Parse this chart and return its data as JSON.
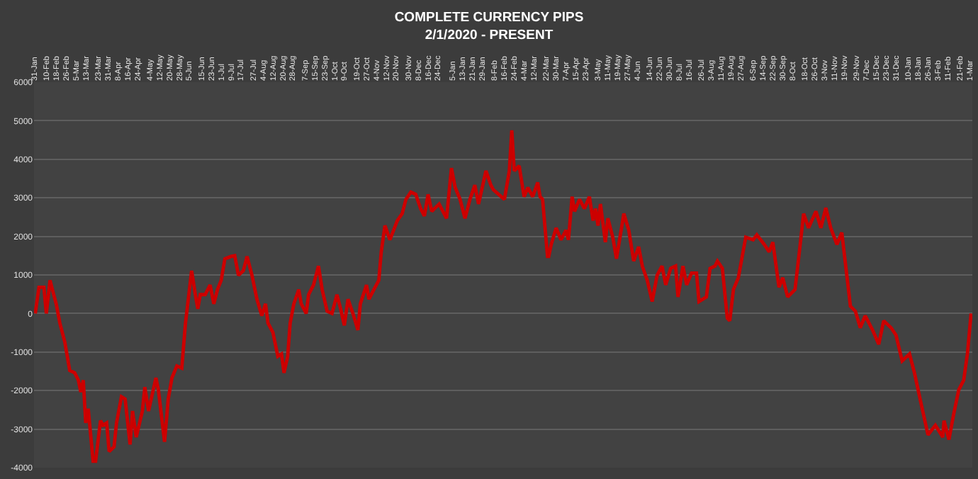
{
  "chart_data": {
    "type": "line",
    "title": "COMPLETE CURRENCY PIPS",
    "subtitle": "2/1/2020 - PRESENT",
    "series": [
      {
        "color": "#cc0000",
        "x": [
          "2020-02-01",
          "2020-02-04",
          "2020-02-08",
          "2020-02-10",
          "2020-02-13",
          "2020-02-16",
          "2020-02-18",
          "2020-02-21",
          "2020-02-25",
          "2020-02-29",
          "2020-03-04",
          "2020-03-07",
          "2020-03-09",
          "2020-03-11",
          "2020-03-13",
          "2020-03-15",
          "2020-03-19",
          "2020-03-21",
          "2020-03-25",
          "2020-03-27",
          "2020-03-30",
          "2020-04-01",
          "2020-04-05",
          "2020-04-07",
          "2020-04-11",
          "2020-04-14",
          "2020-04-18",
          "2020-04-20",
          "2020-04-23",
          "2020-04-28",
          "2020-04-30",
          "2020-05-03",
          "2020-05-09",
          "2020-05-11",
          "2020-05-16",
          "2020-05-19",
          "2020-05-22",
          "2020-05-26",
          "2020-05-30",
          "2020-06-02",
          "2020-06-07",
          "2020-06-10",
          "2020-06-12",
          "2020-06-14",
          "2020-06-18",
          "2020-06-22",
          "2020-06-25",
          "2020-06-28",
          "2020-07-01",
          "2020-07-04",
          "2020-07-09",
          "2020-07-12",
          "2020-07-15",
          "2020-07-19",
          "2020-07-22",
          "2020-07-26",
          "2020-07-30",
          "2020-08-03",
          "2020-08-06",
          "2020-08-08",
          "2020-08-12",
          "2020-08-16",
          "2020-08-19",
          "2020-08-21",
          "2020-08-24",
          "2020-08-26",
          "2020-08-29",
          "2020-09-02",
          "2020-09-04",
          "2020-09-08",
          "2020-09-10",
          "2020-09-14",
          "2020-09-18",
          "2020-09-21",
          "2020-09-25",
          "2020-09-29",
          "2020-10-03",
          "2020-10-06",
          "2020-10-09",
          "2020-10-12",
          "2020-10-16",
          "2020-10-20",
          "2020-10-22",
          "2020-10-27",
          "2020-10-29",
          "2020-11-02",
          "2020-11-06",
          "2020-11-08",
          "2020-11-11",
          "2020-11-15",
          "2020-11-21",
          "2020-11-25",
          "2020-11-28",
          "2020-12-02",
          "2020-12-06",
          "2020-12-10",
          "2020-12-13",
          "2020-12-16",
          "2020-12-19",
          "2020-12-25",
          "2020-12-31",
          "2021-01-04",
          "2021-01-07",
          "2021-01-11",
          "2021-01-15",
          "2021-01-19",
          "2021-01-23",
          "2021-01-26",
          "2021-02-01",
          "2021-02-05",
          "2021-02-07",
          "2021-02-16",
          "2021-02-20",
          "2021-02-22",
          "2021-02-24",
          "2021-02-28",
          "2021-03-04",
          "2021-03-07",
          "2021-03-11",
          "2021-03-15",
          "2021-03-17",
          "2021-03-19",
          "2021-03-23",
          "2021-03-24",
          "2021-03-26",
          "2021-03-30",
          "2021-04-03",
          "2021-04-07",
          "2021-04-09",
          "2021-04-12",
          "2021-04-14",
          "2021-04-18",
          "2021-04-22",
          "2021-04-26",
          "2021-04-29",
          "2021-05-01",
          "2021-05-03",
          "2021-05-05",
          "2021-05-09",
          "2021-05-11",
          "2021-05-15",
          "2021-05-18",
          "2021-05-24",
          "2021-05-28",
          "2021-06-01",
          "2021-06-05",
          "2021-06-08",
          "2021-06-12",
          "2021-06-16",
          "2021-06-20",
          "2021-06-24",
          "2021-06-27",
          "2021-07-01",
          "2021-07-05",
          "2021-07-07",
          "2021-07-11",
          "2021-07-14",
          "2021-07-18",
          "2021-07-22",
          "2021-07-24",
          "2021-07-30",
          "2021-08-02",
          "2021-08-06",
          "2021-08-08",
          "2021-08-12",
          "2021-08-16",
          "2021-08-18",
          "2021-08-21",
          "2021-08-25",
          "2021-08-31",
          "2021-09-06",
          "2021-09-09",
          "2021-09-15",
          "2021-09-19",
          "2021-09-22",
          "2021-09-27",
          "2021-09-30",
          "2021-10-04",
          "2021-10-10",
          "2021-10-14",
          "2021-10-17",
          "2021-10-21",
          "2021-10-27",
          "2021-10-31",
          "2021-11-04",
          "2021-11-08",
          "2021-11-13",
          "2021-11-17",
          "2021-11-24",
          "2021-11-28",
          "2021-12-02",
          "2021-12-06",
          "2021-12-12",
          "2021-12-17",
          "2021-12-21",
          "2021-12-27",
          "2021-12-31",
          "2022-01-05",
          "2022-01-11",
          "2022-01-15",
          "2022-01-20",
          "2022-01-26",
          "2022-02-01",
          "2022-02-07",
          "2022-02-08",
          "2022-02-12",
          "2022-02-16",
          "2022-02-20",
          "2022-02-24",
          "2022-02-27",
          "2022-03-02"
        ],
        "values": [
          0,
          680,
          680,
          0,
          860,
          490,
          250,
          -250,
          -740,
          -1480,
          -1540,
          -1730,
          -2040,
          -1730,
          -2840,
          -2470,
          -3830,
          -3830,
          -2780,
          -2900,
          -2840,
          -3580,
          -3460,
          -2840,
          -2160,
          -2220,
          -3400,
          -2530,
          -3210,
          -2530,
          -1910,
          -2530,
          -1670,
          -1980,
          -3330,
          -2220,
          -1670,
          -1360,
          -1420,
          -250,
          1110,
          490,
          120,
          490,
          490,
          740,
          250,
          620,
          860,
          1420,
          1480,
          1500,
          990,
          1110,
          1480,
          990,
          370,
          -60,
          250,
          -250,
          -490,
          -1110,
          -1050,
          -1540,
          -1110,
          -250,
          250,
          620,
          250,
          0,
          490,
          740,
          1230,
          620,
          60,
          0,
          490,
          120,
          -310,
          370,
          0,
          -430,
          250,
          740,
          370,
          620,
          860,
          1600,
          2280,
          1910,
          2410,
          2590,
          2960,
          3150,
          3090,
          2720,
          2530,
          3090,
          2650,
          2840,
          2470,
          3770,
          3270,
          2960,
          2470,
          2960,
          3330,
          2840,
          3700,
          3330,
          3210,
          2960,
          3700,
          4750,
          3700,
          3830,
          3030,
          3270,
          3030,
          3400,
          3030,
          2960,
          1480,
          1480,
          1790,
          2220,
          1910,
          2160,
          1910,
          3030,
          2650,
          2960,
          2720,
          3030,
          2410,
          2720,
          2280,
          2840,
          1850,
          2470,
          1980,
          1420,
          2590,
          2160,
          1360,
          1730,
          1230,
          860,
          310,
          990,
          1230,
          740,
          1170,
          1230,
          430,
          1230,
          740,
          1050,
          1050,
          310,
          430,
          1170,
          1230,
          1360,
          1170,
          -120,
          -190,
          620,
          930,
          1980,
          1910,
          2040,
          1790,
          1600,
          1850,
          680,
          930,
          430,
          620,
          1730,
          2590,
          2220,
          2650,
          2220,
          2740,
          2220,
          1790,
          2100,
          190,
          60,
          -370,
          -60,
          -430,
          -800,
          -190,
          -370,
          -560,
          -1230,
          -1050,
          -1540,
          -2280,
          -3150,
          -2900,
          -3210,
          -2780,
          -3270,
          -2590,
          -1980,
          -1730,
          -1050,
          0
        ]
      }
    ],
    "xlim": [
      "2020-01-31",
      "2022-03-03"
    ],
    "xticks": [
      {
        "value": "2020-01-31",
        "label": "31-Jan"
      },
      {
        "value": "2020-02-10",
        "label": "10-Feb"
      },
      {
        "value": "2020-02-18",
        "label": "18-Feb"
      },
      {
        "value": "2020-02-26",
        "label": "26-Feb"
      },
      {
        "value": "2020-03-05",
        "label": "5-Mar"
      },
      {
        "value": "2020-03-13",
        "label": "13-Mar"
      },
      {
        "value": "2020-03-23",
        "label": "23-Mar"
      },
      {
        "value": "2020-03-31",
        "label": "31-Mar"
      },
      {
        "value": "2020-04-08",
        "label": "8-Apr"
      },
      {
        "value": "2020-04-16",
        "label": "16-Apr"
      },
      {
        "value": "2020-04-24",
        "label": "24-Apr"
      },
      {
        "value": "2020-05-04",
        "label": "4-May"
      },
      {
        "value": "2020-05-12",
        "label": "12-May"
      },
      {
        "value": "2020-05-20",
        "label": "20-May"
      },
      {
        "value": "2020-05-28",
        "label": "28-May"
      },
      {
        "value": "2020-06-05",
        "label": "5-Jun"
      },
      {
        "value": "2020-06-15",
        "label": "15-Jun"
      },
      {
        "value": "2020-06-23",
        "label": "23-Jun"
      },
      {
        "value": "2020-07-01",
        "label": "1-Jul"
      },
      {
        "value": "2020-07-09",
        "label": "9-Jul"
      },
      {
        "value": "2020-07-17",
        "label": "17-Jul"
      },
      {
        "value": "2020-07-27",
        "label": "27-Jul"
      },
      {
        "value": "2020-08-04",
        "label": "4-Aug"
      },
      {
        "value": "2020-08-12",
        "label": "12-Aug"
      },
      {
        "value": "2020-08-20",
        "label": "20-Aug"
      },
      {
        "value": "2020-08-28",
        "label": "28-Aug"
      },
      {
        "value": "2020-09-07",
        "label": "7-Sep"
      },
      {
        "value": "2020-09-15",
        "label": "15-Sep"
      },
      {
        "value": "2020-09-23",
        "label": "23-Sep"
      },
      {
        "value": "2020-10-01",
        "label": "1-Oct"
      },
      {
        "value": "2020-10-09",
        "label": "9-Oct"
      },
      {
        "value": "2020-10-19",
        "label": "19-Oct"
      },
      {
        "value": "2020-10-27",
        "label": "27-Oct"
      },
      {
        "value": "2020-11-04",
        "label": "4-Nov"
      },
      {
        "value": "2020-11-12",
        "label": "12-Nov"
      },
      {
        "value": "2020-11-20",
        "label": "20-Nov"
      },
      {
        "value": "2020-11-30",
        "label": "30-Nov"
      },
      {
        "value": "2020-12-08",
        "label": "8-Dec"
      },
      {
        "value": "2020-12-16",
        "label": "16-Dec"
      },
      {
        "value": "2020-12-24",
        "label": "24-Dec"
      },
      {
        "value": "2021-01-05",
        "label": "5-Jan"
      },
      {
        "value": "2021-01-13",
        "label": "13-Jan"
      },
      {
        "value": "2021-01-21",
        "label": "21-Jan"
      },
      {
        "value": "2021-01-29",
        "label": "29-Jan"
      },
      {
        "value": "2021-02-08",
        "label": "8-Feb"
      },
      {
        "value": "2021-02-16",
        "label": "16-Feb"
      },
      {
        "value": "2021-02-24",
        "label": "24-Feb"
      },
      {
        "value": "2021-03-04",
        "label": "4-Mar"
      },
      {
        "value": "2021-03-12",
        "label": "12-Mar"
      },
      {
        "value": "2021-03-22",
        "label": "22-Mar"
      },
      {
        "value": "2021-03-30",
        "label": "30-Mar"
      },
      {
        "value": "2021-04-07",
        "label": "7-Apr"
      },
      {
        "value": "2021-04-15",
        "label": "15-Apr"
      },
      {
        "value": "2021-04-23",
        "label": "23-Apr"
      },
      {
        "value": "2021-05-03",
        "label": "3-May"
      },
      {
        "value": "2021-05-11",
        "label": "11-May"
      },
      {
        "value": "2021-05-19",
        "label": "19-May"
      },
      {
        "value": "2021-05-27",
        "label": "27-May"
      },
      {
        "value": "2021-06-04",
        "label": "4-Jun"
      },
      {
        "value": "2021-06-14",
        "label": "14-Jun"
      },
      {
        "value": "2021-06-22",
        "label": "22-Jun"
      },
      {
        "value": "2021-06-30",
        "label": "30-Jun"
      },
      {
        "value": "2021-07-08",
        "label": "8-Jul"
      },
      {
        "value": "2021-07-16",
        "label": "16-Jul"
      },
      {
        "value": "2021-07-26",
        "label": "26-Jul"
      },
      {
        "value": "2021-08-03",
        "label": "3-Aug"
      },
      {
        "value": "2021-08-11",
        "label": "11-Aug"
      },
      {
        "value": "2021-08-19",
        "label": "19-Aug"
      },
      {
        "value": "2021-08-27",
        "label": "27-Aug"
      },
      {
        "value": "2021-09-06",
        "label": "6-Sep"
      },
      {
        "value": "2021-09-14",
        "label": "14-Sep"
      },
      {
        "value": "2021-09-22",
        "label": "22-Sep"
      },
      {
        "value": "2021-09-30",
        "label": "30-Sep"
      },
      {
        "value": "2021-10-08",
        "label": "8-Oct"
      },
      {
        "value": "2021-10-18",
        "label": "18-Oct"
      },
      {
        "value": "2021-10-26",
        "label": "26-Oct"
      },
      {
        "value": "2021-11-03",
        "label": "3-Nov"
      },
      {
        "value": "2021-11-11",
        "label": "11-Nov"
      },
      {
        "value": "2021-11-19",
        "label": "19-Nov"
      },
      {
        "value": "2021-11-29",
        "label": "29-Nov"
      },
      {
        "value": "2021-12-07",
        "label": "7-Dec"
      },
      {
        "value": "2021-12-15",
        "label": "15-Dec"
      },
      {
        "value": "2021-12-23",
        "label": "23-Dec"
      },
      {
        "value": "2021-12-31",
        "label": "31-Dec"
      },
      {
        "value": "2022-01-10",
        "label": "10-Jan"
      },
      {
        "value": "2022-01-18",
        "label": "18-Jan"
      },
      {
        "value": "2022-01-26",
        "label": "26-Jan"
      },
      {
        "value": "2022-02-03",
        "label": "3-Feb"
      },
      {
        "value": "2022-02-11",
        "label": "11-Feb"
      },
      {
        "value": "2022-02-21",
        "label": "21-Feb"
      },
      {
        "value": "2022-03-01",
        "label": "1-Mar"
      }
    ],
    "ylim": [
      -4000,
      6000
    ],
    "yticks": [
      -4000,
      -3000,
      -2000,
      -1000,
      0,
      1000,
      2000,
      3000,
      4000,
      5000,
      6000
    ],
    "grid": "y",
    "marker": "none",
    "line_style": "solid"
  }
}
